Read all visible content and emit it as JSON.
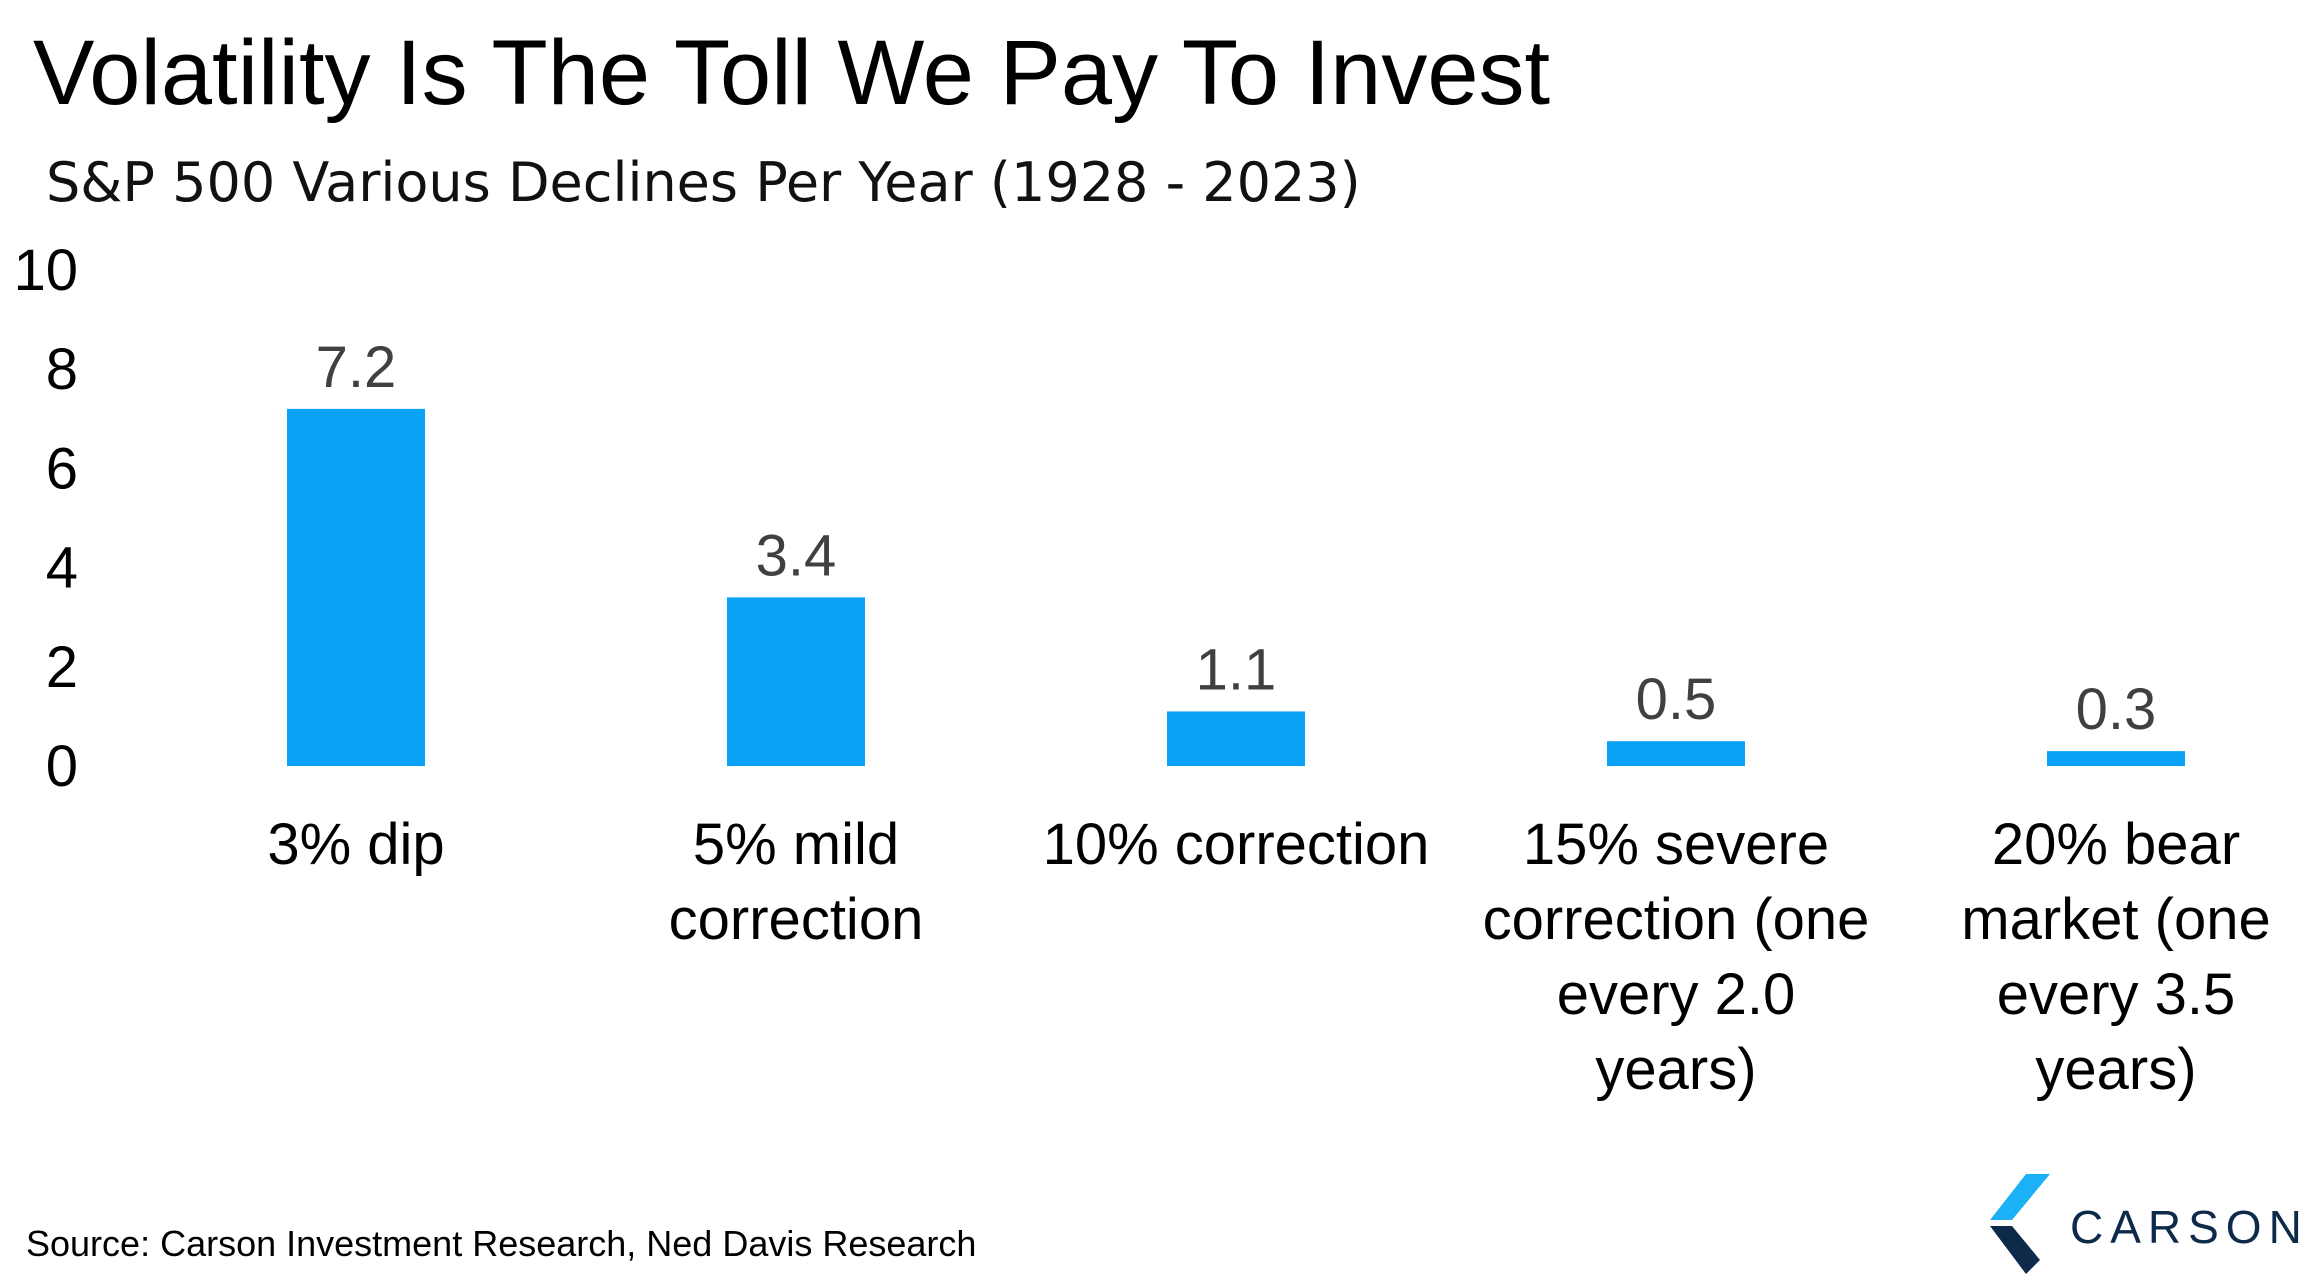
{
  "chart_data": {
    "type": "bar",
    "title": "Volatility Is The Toll We Pay To Invest",
    "subtitle": "S&P 500 Various Declines Per Year (1928 - 2023)",
    "categories": [
      "3% dip",
      "5% mild correction",
      "10% correction",
      "15% severe correction (one every 2.0 years)",
      "20% bear market (one every 3.5 years)"
    ],
    "category_lines": [
      [
        "3% dip"
      ],
      [
        "5% mild",
        "correction"
      ],
      [
        "10% correction"
      ],
      [
        "15% severe",
        "correction (one",
        "every 2.0",
        "years)"
      ],
      [
        "20% bear",
        "market (one",
        "every 3.5",
        "years)"
      ]
    ],
    "values": [
      7.2,
      3.4,
      1.1,
      0.5,
      0.3
    ],
    "data_labels": [
      "7.2",
      "3.4",
      "1.1",
      "0.5",
      "0.3"
    ],
    "yticks": [
      0,
      2,
      4,
      6,
      8,
      10
    ],
    "ylim": [
      0,
      10
    ],
    "grid": false,
    "bar_color": "#0aa2f7"
  },
  "footer": {
    "source": "Source: Carson Investment Research, Ned Davis Research"
  },
  "logo": {
    "text": "CARSON",
    "icon": "carson-chevron-icon",
    "colors": [
      "#1cb0f6",
      "#0d2a4a"
    ]
  }
}
